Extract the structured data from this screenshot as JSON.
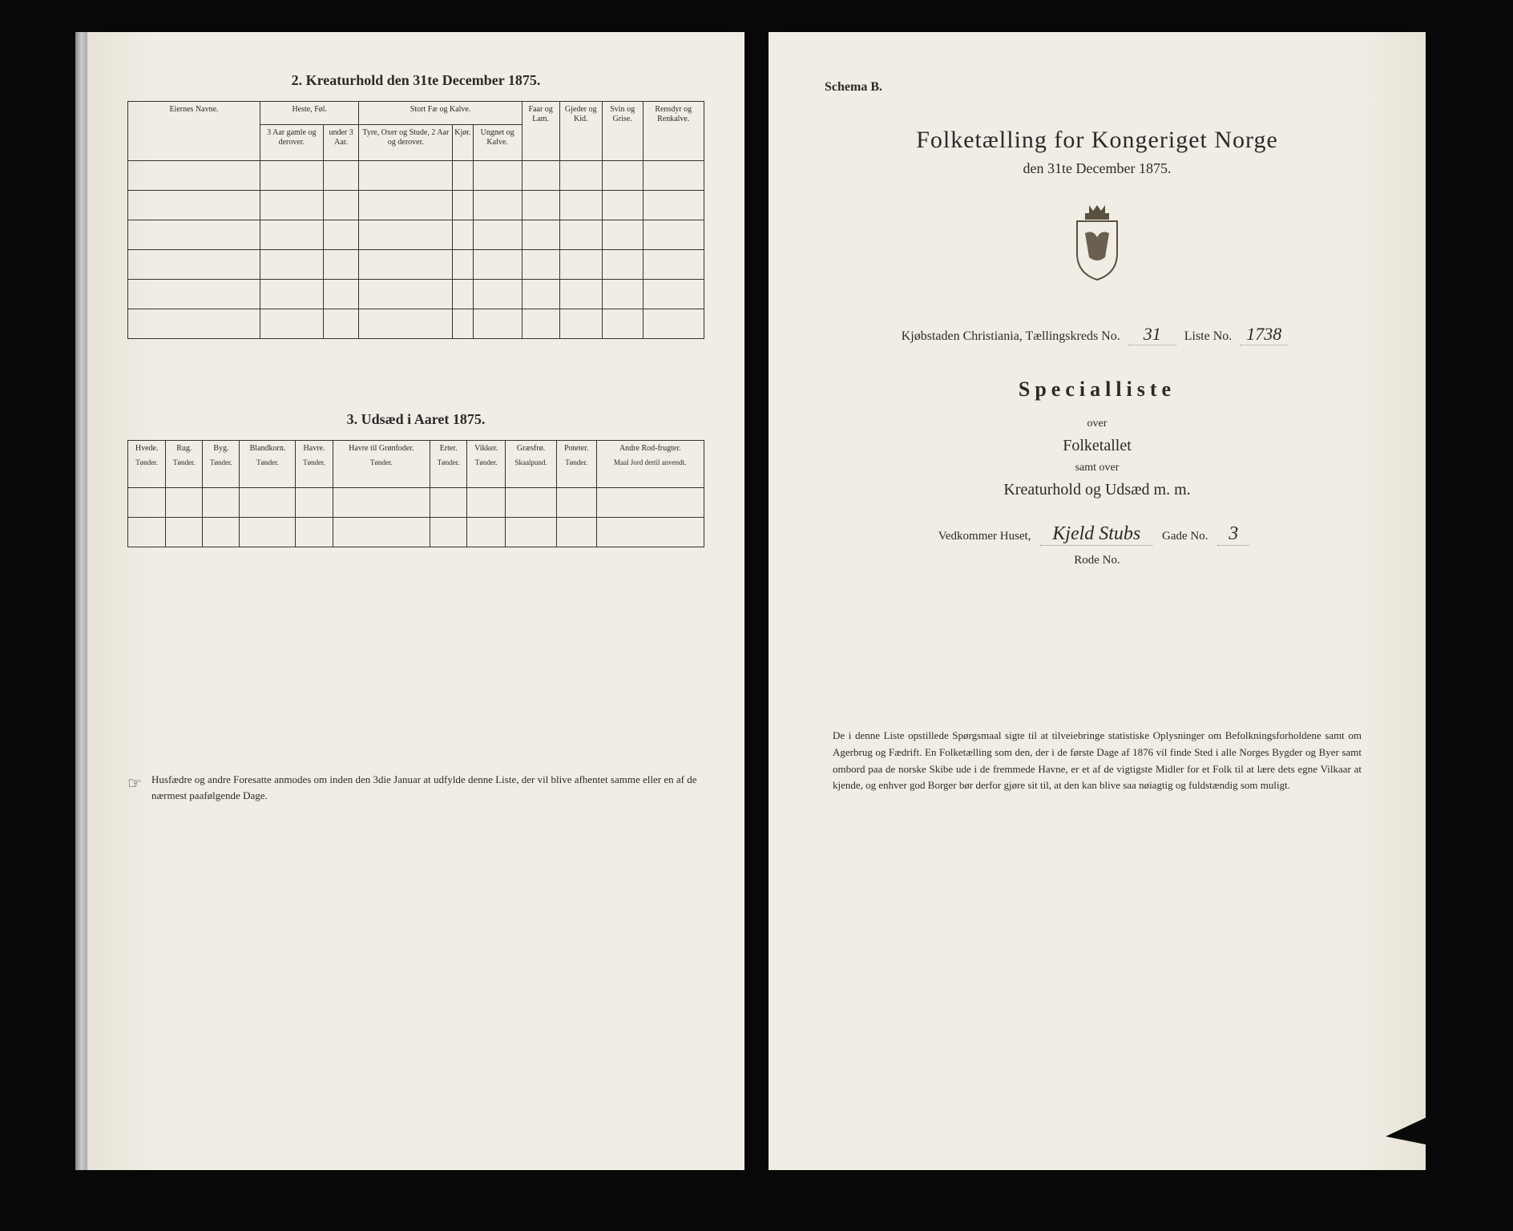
{
  "background_color": "#0a0a0a",
  "paper_color": "#f0ede4",
  "text_color": "#2a2a2a",
  "left": {
    "section2_title": "2.  Kreaturhold den 31te December 1875.",
    "table1": {
      "eier_header": "Eiernes Navne.",
      "group_heste": "Heste, Føl.",
      "group_storfe": "Stort Fæ og Kalve.",
      "heste_a": "3 Aar gamle og derover.",
      "heste_b": "under 3 Aar.",
      "storfe_a": "Tyre, Oxer og Stude, 2 Aar og derover.",
      "storfe_b": "Kjør.",
      "storfe_c": "Ungnet og Kalve.",
      "faar": "Faar og Lam.",
      "gjeder": "Gjeder og Kid.",
      "svin": "Svin og Grise.",
      "rensdyr": "Rensdyr og Renkalve.",
      "blank_rows": 6
    },
    "section3_title": "3.  Udsæd i Aaret 1875.",
    "table2": {
      "cols": [
        {
          "h": "Hvede.",
          "s": "Tønder."
        },
        {
          "h": "Rug.",
          "s": "Tønder."
        },
        {
          "h": "Byg.",
          "s": "Tønder."
        },
        {
          "h": "Blandkorn.",
          "s": "Tønder."
        },
        {
          "h": "Havre.",
          "s": "Tønder."
        },
        {
          "h": "Havre til Grønfoder.",
          "s": "Tønder."
        },
        {
          "h": "Erter.",
          "s": "Tønder."
        },
        {
          "h": "Vikker.",
          "s": "Tønder."
        },
        {
          "h": "Græsfrø.",
          "s": "Skaalpund."
        },
        {
          "h": "Poteter.",
          "s": "Tønder."
        },
        {
          "h": "Andre Rod-frugter.",
          "s": "Maal Jord dertil anvendt."
        }
      ],
      "blank_rows": 2
    },
    "hand_icon": "☞",
    "footnote": "Husfædre og andre Foresatte anmodes om inden den 3die Januar at udfylde denne Liste, der vil blive afhentet samme eller en af de nærmest paafølgende Dage."
  },
  "right": {
    "schema_label": "Schema B.",
    "main_title": "Folketælling for Kongeriget Norge",
    "sub_date": "den 31te December 1875.",
    "crest_glyph": "♛",
    "city_line_prefix": "Kjøbstaden Christiania,   Tællingskreds No.",
    "kreds_no": "31",
    "liste_label": "Liste No.",
    "liste_no": "1738",
    "special_title": "Specialliste",
    "over1": "over",
    "folketallet": "Folketallet",
    "samt_over": "samt over",
    "kreatur": "Kreaturhold og Udsæd m. m.",
    "hus_prefix": "Vedkommer Huset,",
    "hus_hand": "Kjeld Stubs",
    "gade_label": "Gade No.",
    "gade_no": "3",
    "rode_label": "Rode No.",
    "bottom_para": "De i denne Liste opstillede Spørgsmaal sigte til at tilveiebringe statistiske Oplysninger om Befolkningsforholdene samt om Agerbrug og Fædrift.  En Folketælling som den, der i de første Dage af 1876 vil finde Sted i alle Norges Bygder og Byer samt ombord paa de norske Skibe ude i de fremmede Havne, er et af de vigtigste Midler for et Folk til at lære dets egne Vilkaar at kjende, og enhver god Borger bør derfor gjøre sit til, at den kan blive saa nøiagtig og fuldstændig som muligt."
  }
}
